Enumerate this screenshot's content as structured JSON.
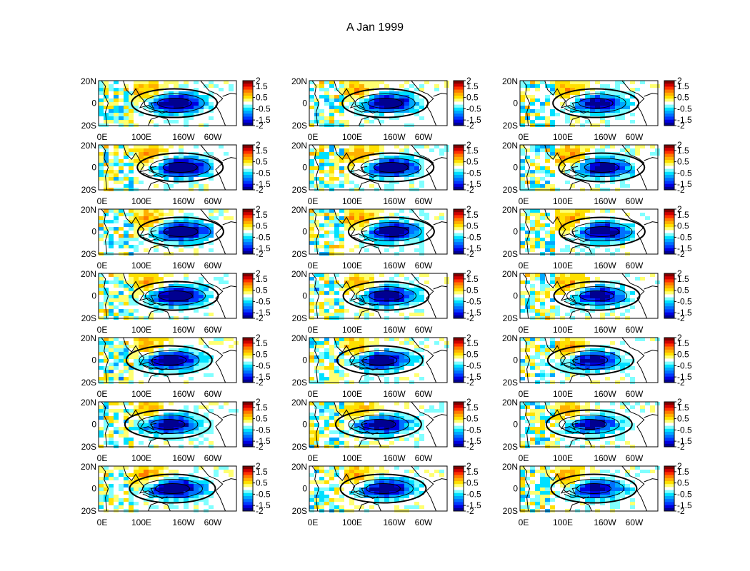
{
  "title": "A Jan 1999",
  "chart_data": {
    "type": "heatmap",
    "title": "A Jan 1999",
    "grid": {
      "rows": 7,
      "cols": 3
    },
    "xticks": [
      "0E",
      "100E",
      "160W",
      "60W"
    ],
    "yticks": [
      "20N",
      "0",
      "20S"
    ],
    "colorbar": {
      "ticks": [
        "2",
        "1.5",
        "0.5",
        "-0.5",
        "-1.5",
        "-2"
      ],
      "range": [
        -2,
        2
      ],
      "colors": [
        "#800000",
        "#d00000",
        "#ff3000",
        "#ff7a00",
        "#ffb000",
        "#ffe000",
        "#ffff70",
        "#ffffff",
        "#80ffff",
        "#00e0ff",
        "#00a8ff",
        "#0070ff",
        "#0038ff",
        "#0000e0",
        "#000090"
      ]
    },
    "colors": {
      "land_outline": "#000000",
      "warm": "#ff8c1a",
      "cool": "#0050ff"
    }
  }
}
